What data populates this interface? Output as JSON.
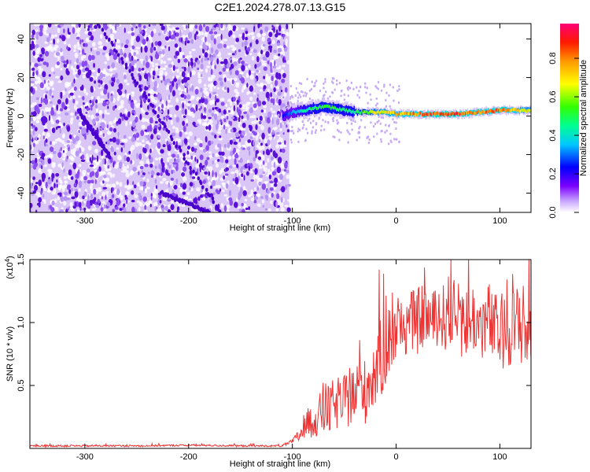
{
  "figure_title": "C2E1.2024.278.07.13.G15",
  "colors": {
    "spectrogram_noise": "#6a1fe0",
    "spectrogram_haze": "#d9c6f7",
    "snr_line": "#ee3333",
    "axis": "#000000"
  },
  "colorbar": {
    "label": "Normalized spectral amplitude",
    "ticks": [
      "0.0",
      "0.2",
      "0.4",
      "0.6",
      "0.8"
    ],
    "tick_values": [
      0.0,
      0.2,
      0.4,
      0.6,
      0.8
    ],
    "range": [
      0.0,
      0.98
    ]
  },
  "chart_data": [
    {
      "type": "heatmap",
      "title": "C2E1.2024.278.07.13.G15",
      "xlabel": "Height of straight line (km)",
      "ylabel": "Frequency (Hz)",
      "xlim": [
        -353,
        130
      ],
      "ylim": [
        -50,
        48
      ],
      "xticks": [
        -300,
        -200,
        -100,
        0,
        100
      ],
      "xtick_labels": [
        "-300",
        "-200",
        "-100",
        "0",
        "100"
      ],
      "yticks": [
        -40,
        -20,
        0,
        20,
        40
      ],
      "ytick_labels": [
        "-40",
        "-20",
        "0",
        "20",
        "40"
      ],
      "noise_region_x": [
        -353,
        -103
      ],
      "signal_track": {
        "x": [
          -110,
          -100,
          -90,
          -80,
          -70,
          -60,
          -50,
          -40,
          -30,
          -20,
          -10,
          0,
          20,
          40,
          60,
          80,
          100,
          120,
          130
        ],
        "freq_hz": [
          0,
          2,
          3,
          4,
          5,
          4,
          3,
          2,
          2,
          2,
          2,
          1,
          1,
          1,
          1,
          2,
          3,
          3,
          3
        ],
        "amplitude": [
          0.25,
          0.35,
          0.45,
          0.5,
          0.55,
          0.55,
          0.5,
          0.5,
          0.6,
          0.7,
          0.75,
          0.8,
          0.85,
          0.9,
          0.9,
          0.85,
          0.9,
          0.75,
          0.7
        ]
      }
    },
    {
      "type": "line",
      "xlabel": "Height of straight line (km)",
      "ylabel": "SNR (10 * v/v)",
      "multiplier_label": "(x10",
      "multiplier_exponent": "4",
      "multiplier_close": ")",
      "xlim": [
        -353,
        130
      ],
      "ylim": [
        0,
        1.5
      ],
      "xticks": [
        -300,
        -200,
        -100,
        0,
        100
      ],
      "xtick_labels": [
        "-300",
        "-200",
        "-100",
        "0",
        "100"
      ],
      "yticks": [
        0.5,
        1.0,
        1.5
      ],
      "ytick_labels": [
        "0.5",
        "1.0",
        "1.5"
      ],
      "series": [
        {
          "name": "SNR",
          "x": [
            -353,
            -300,
            -250,
            -200,
            -150,
            -110,
            -100,
            -95,
            -90,
            -85,
            -80,
            -75,
            -70,
            -65,
            -60,
            -55,
            -50,
            -45,
            -40,
            -35,
            -30,
            -25,
            -20,
            -15,
            -10,
            -5,
            0,
            5,
            10,
            15,
            20,
            25,
            30,
            35,
            40,
            45,
            50,
            55,
            60,
            65,
            70,
            75,
            80,
            85,
            90,
            95,
            100,
            105,
            110,
            115,
            120,
            125,
            130
          ],
          "y": [
            0.02,
            0.02,
            0.02,
            0.025,
            0.02,
            0.02,
            0.05,
            0.09,
            0.14,
            0.2,
            0.22,
            0.26,
            0.28,
            0.3,
            0.34,
            0.37,
            0.36,
            0.4,
            0.42,
            0.48,
            0.45,
            0.55,
            0.62,
            0.7,
            0.8,
            0.88,
            0.9,
            0.95,
            0.98,
            1.02,
            1.0,
            1.05,
            1.05,
            1.0,
            1.08,
            1.02,
            1.1,
            1.05,
            1.0,
            1.02,
            0.98,
            1.05,
            0.95,
            1.0,
            1.02,
            0.92,
            0.95,
            0.9,
            0.98,
            0.95,
            1.0,
            0.92,
            0.95
          ],
          "noise_amplitude": [
            0.006,
            0.006,
            0.006,
            0.006,
            0.006,
            0.006,
            0.02,
            0.04,
            0.07,
            0.1,
            0.12,
            0.14,
            0.16,
            0.17,
            0.18,
            0.18,
            0.18,
            0.19,
            0.2,
            0.22,
            0.22,
            0.24,
            0.26,
            0.27,
            0.26,
            0.25,
            0.22,
            0.2,
            0.2,
            0.2,
            0.22,
            0.22,
            0.2,
            0.2,
            0.22,
            0.24,
            0.24,
            0.25,
            0.26,
            0.24,
            0.24,
            0.24,
            0.24,
            0.24,
            0.26,
            0.26,
            0.26,
            0.26,
            0.26,
            0.28,
            0.28,
            0.26,
            0.26
          ]
        }
      ]
    }
  ]
}
